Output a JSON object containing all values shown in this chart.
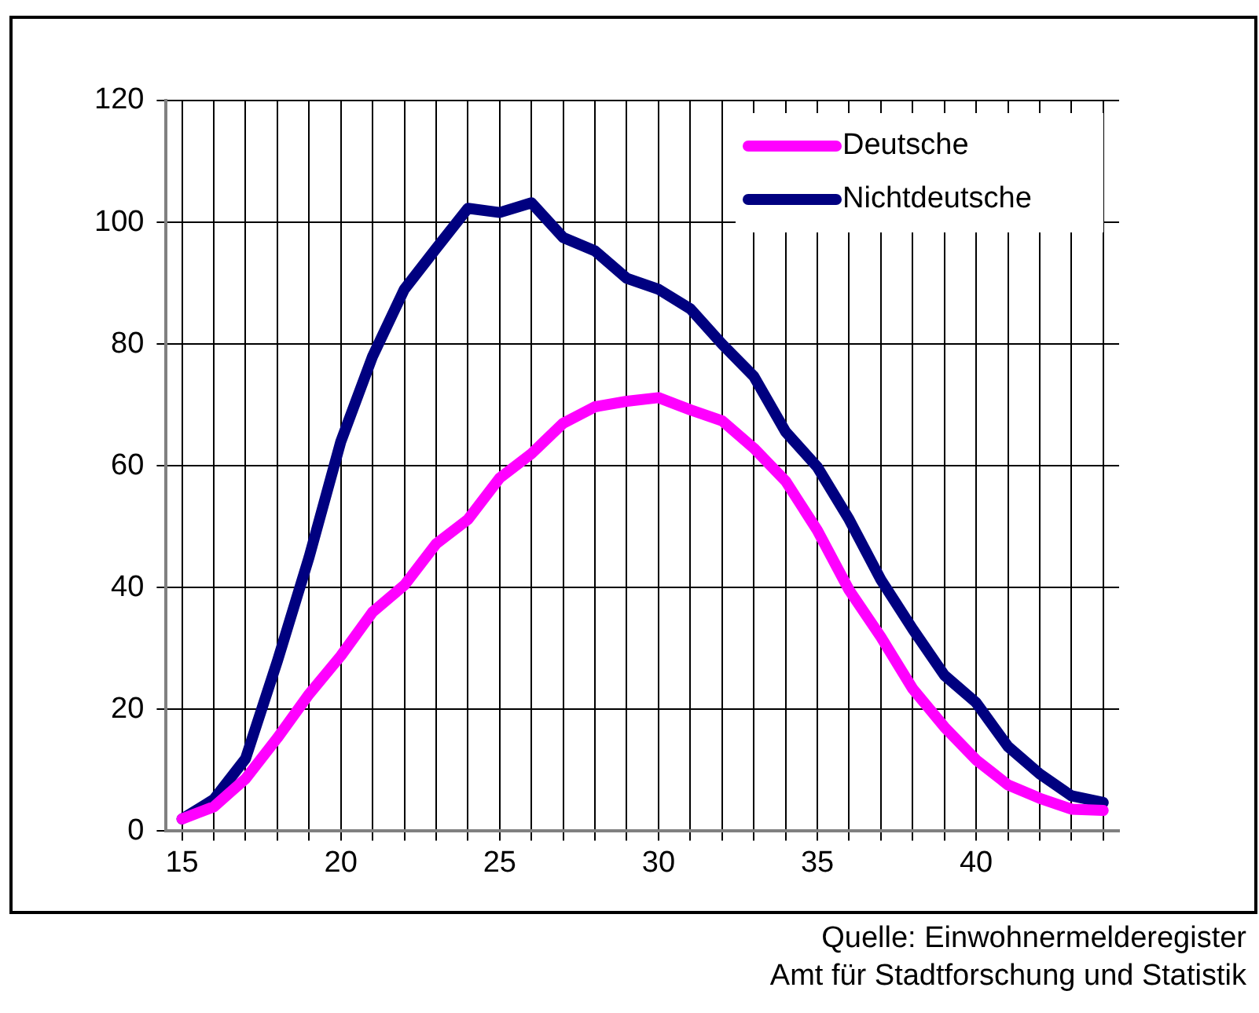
{
  "chart_data": {
    "type": "line",
    "x": [
      15,
      16,
      17,
      18,
      19,
      20,
      21,
      22,
      23,
      24,
      25,
      26,
      27,
      28,
      29,
      30,
      31,
      32,
      33,
      34,
      35,
      36,
      37,
      38,
      39,
      40,
      41,
      42,
      43,
      44
    ],
    "series": [
      {
        "name": "Deutsche",
        "color": "#ff00ff",
        "values": [
          2,
          4,
          8.6,
          15.3,
          22.5,
          28.8,
          36,
          40.4,
          47.2,
          51.2,
          58,
          62,
          67,
          69.7,
          70.6,
          71.2,
          69.2,
          67.4,
          62.9,
          57.5,
          49.4,
          39.6,
          31.9,
          23.4,
          17.1,
          11.7,
          7.6,
          5.4,
          3.6,
          3.4
        ]
      },
      {
        "name": "Nichtdeutsche",
        "color": "#000080",
        "values": [
          2,
          5.2,
          11.9,
          27.9,
          45,
          64,
          78,
          89,
          95.7,
          102.3,
          101.6,
          103.2,
          97.5,
          95.3,
          90.8,
          89,
          85.8,
          80,
          74.7,
          65.6,
          59.8,
          51.2,
          41.3,
          33.2,
          25.6,
          21.1,
          13.9,
          9.4,
          5.8,
          4.7
        ]
      }
    ],
    "xlim": [
      14.5,
      44.5
    ],
    "xticks": [
      15,
      {
        "value": 16,
        "label": null
      },
      {
        "value": 17,
        "label": null
      },
      {
        "value": 18,
        "label": null
      },
      {
        "value": 19,
        "label": null
      },
      20,
      {
        "value": 21,
        "label": null
      },
      {
        "value": 22,
        "label": null
      },
      {
        "value": 23,
        "label": null
      },
      {
        "value": 24,
        "label": null
      },
      25,
      {
        "value": 26,
        "label": null
      },
      {
        "value": 27,
        "label": null
      },
      {
        "value": 28,
        "label": null
      },
      {
        "value": 29,
        "label": null
      },
      30,
      {
        "value": 31,
        "label": null
      },
      {
        "value": 32,
        "label": null
      },
      {
        "value": 33,
        "label": null
      },
      {
        "value": 34,
        "label": null
      },
      35,
      {
        "value": 36,
        "label": null
      },
      {
        "value": 37,
        "label": null
      },
      {
        "value": 38,
        "label": null
      },
      {
        "value": 39,
        "label": null
      },
      40,
      {
        "value": 41,
        "label": null
      },
      {
        "value": 42,
        "label": null
      },
      {
        "value": 43,
        "label": null
      },
      {
        "value": 44,
        "label": null
      }
    ],
    "ylim": [
      0,
      120
    ],
    "yticks": [
      0,
      20,
      40,
      60,
      80,
      100,
      120
    ],
    "grid": true,
    "legend": "top right",
    "marker": "none",
    "line_style": "solid",
    "annotations": [
      "Quelle: Einwohnermelderegister",
      "Amt für Stadtforschung und Statistik"
    ]
  }
}
